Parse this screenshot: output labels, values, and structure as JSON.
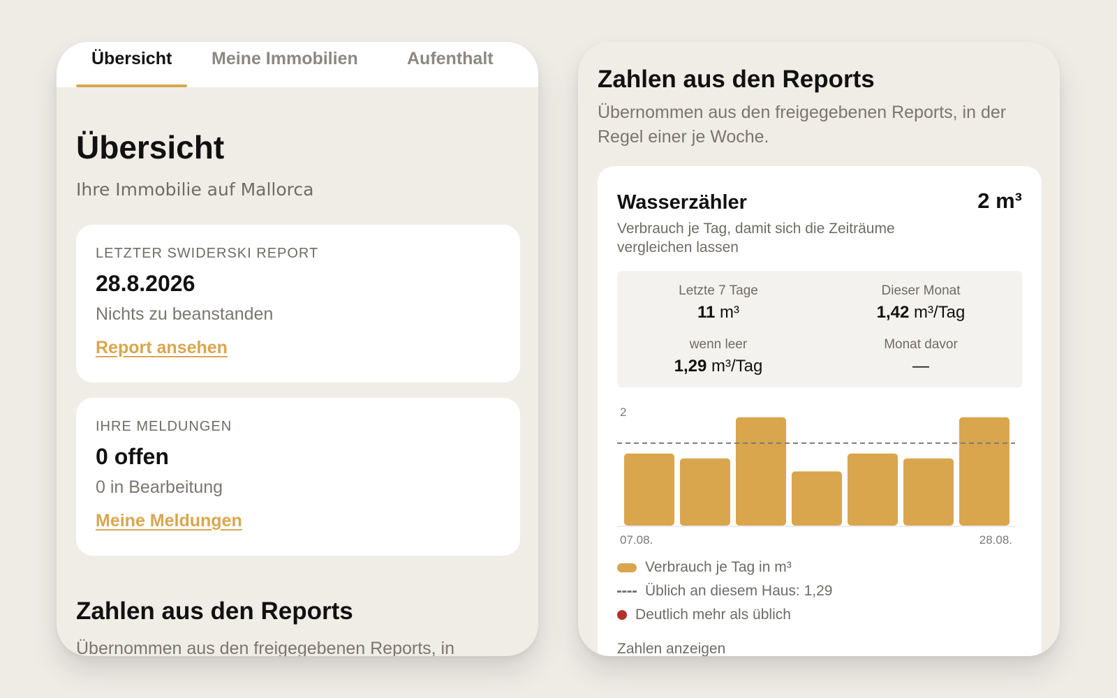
{
  "left_screen": {
    "tabs": [
      {
        "label": "Übersicht",
        "active": true
      },
      {
        "label": "Meine Immobilien",
        "active": false
      },
      {
        "label": "Aufenthalt",
        "active": false
      }
    ],
    "page_title": "Übersicht",
    "page_subtitle": "Ihre Immobilie auf Mallorca",
    "report_card": {
      "kicker": "LETZTER SWIDERSKI REPORT",
      "date": "28.8.2026",
      "status": "Nichts zu beanstanden",
      "link": "Report ansehen"
    },
    "messages_card": {
      "kicker": "IHRE MELDUNGEN",
      "open": "0 offen",
      "in_progress": "0 in Bearbeitung",
      "link": "Meine Meldungen"
    },
    "section_title": "Zahlen aus den Reports",
    "section_text": "Übernommen aus den freigegebenen Reports, in"
  },
  "right_screen": {
    "section_title": "Zahlen aus den Reports",
    "section_text": "Übernommen aus den freigegebenen Reports, in der Regel einer je Woche.",
    "meter": {
      "title": "Wasserzähler",
      "total": "2 m³",
      "description": "Verbrauch je Tag, damit sich die Zeiträume vergleichen lassen",
      "stats": [
        {
          "label": "Letzte 7 Tage",
          "value_bold": "11",
          "value_unit": " m³"
        },
        {
          "label": "Dieser Monat",
          "value_bold": "1,42",
          "value_unit": " m³/Tag"
        },
        {
          "label": "wenn leer",
          "value_bold": "1,29",
          "value_unit": " m³/Tag"
        },
        {
          "label": "Monat davor",
          "value_bold": "",
          "value_unit": "—"
        }
      ],
      "legend": {
        "consumption": "Verbrauch je Tag in m³",
        "usual": "Üblich an diesem Haus: 1,29",
        "high": "Deutlich mehr als üblich"
      },
      "show_numbers": "Zahlen anzeigen"
    }
  },
  "colors": {
    "accent": "#d9a64e",
    "background": "#efece6",
    "card": "#ffffff",
    "alert": "#b3312a"
  },
  "chart_data": {
    "type": "bar",
    "categories": [
      "07.08.",
      "",
      "",
      "",
      "",
      "",
      "28.08."
    ],
    "values": [
      1.33,
      1.24,
      2.0,
      1.0,
      1.33,
      1.24,
      2.0
    ],
    "reference_line": 1.29,
    "ylim": [
      0,
      2.2
    ],
    "y_ticks": [
      "2"
    ],
    "title": "",
    "xlabel": "",
    "ylabel": "",
    "grid": false
  }
}
